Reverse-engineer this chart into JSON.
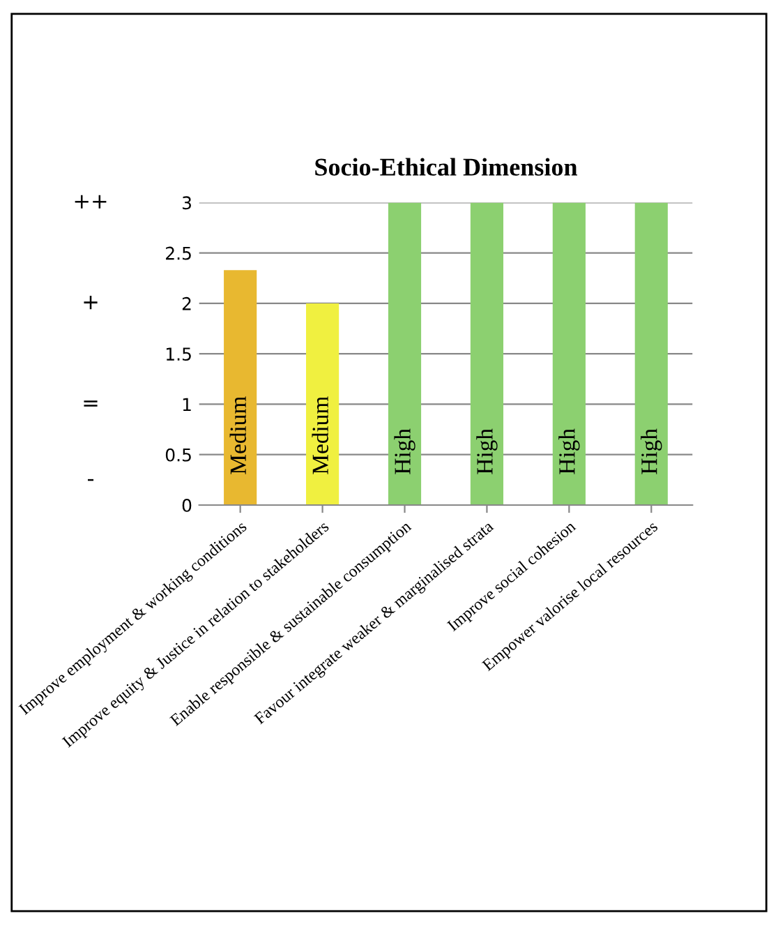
{
  "chart_data": {
    "type": "bar",
    "title": "Socio-Ethical Dimension",
    "categories": [
      "Improve employment & working conditions",
      "Improve equity & Justice in relation to stakeholders",
      "Enable responsible & sustainable consumption",
      "Favour integrate weaker & marginalised strata",
      "Improve social cohesion",
      "Empower valorise local resources"
    ],
    "values": [
      2.33,
      2,
      3,
      3,
      3,
      3
    ],
    "colors": [
      "#e8b830",
      "#f0f040",
      "#8cd070",
      "#8cd070",
      "#8cd070",
      "#8cd070"
    ],
    "value_labels": [
      "Medium",
      "Medium",
      "High",
      "High",
      "High",
      "High"
    ],
    "annotations": [
      "++",
      "+",
      "=",
      "-"
    ],
    "ylim": [
      0,
      3
    ],
    "yticks": [
      0,
      0.5,
      1,
      1.5,
      2,
      2.5,
      3
    ],
    "grid": "y"
  }
}
